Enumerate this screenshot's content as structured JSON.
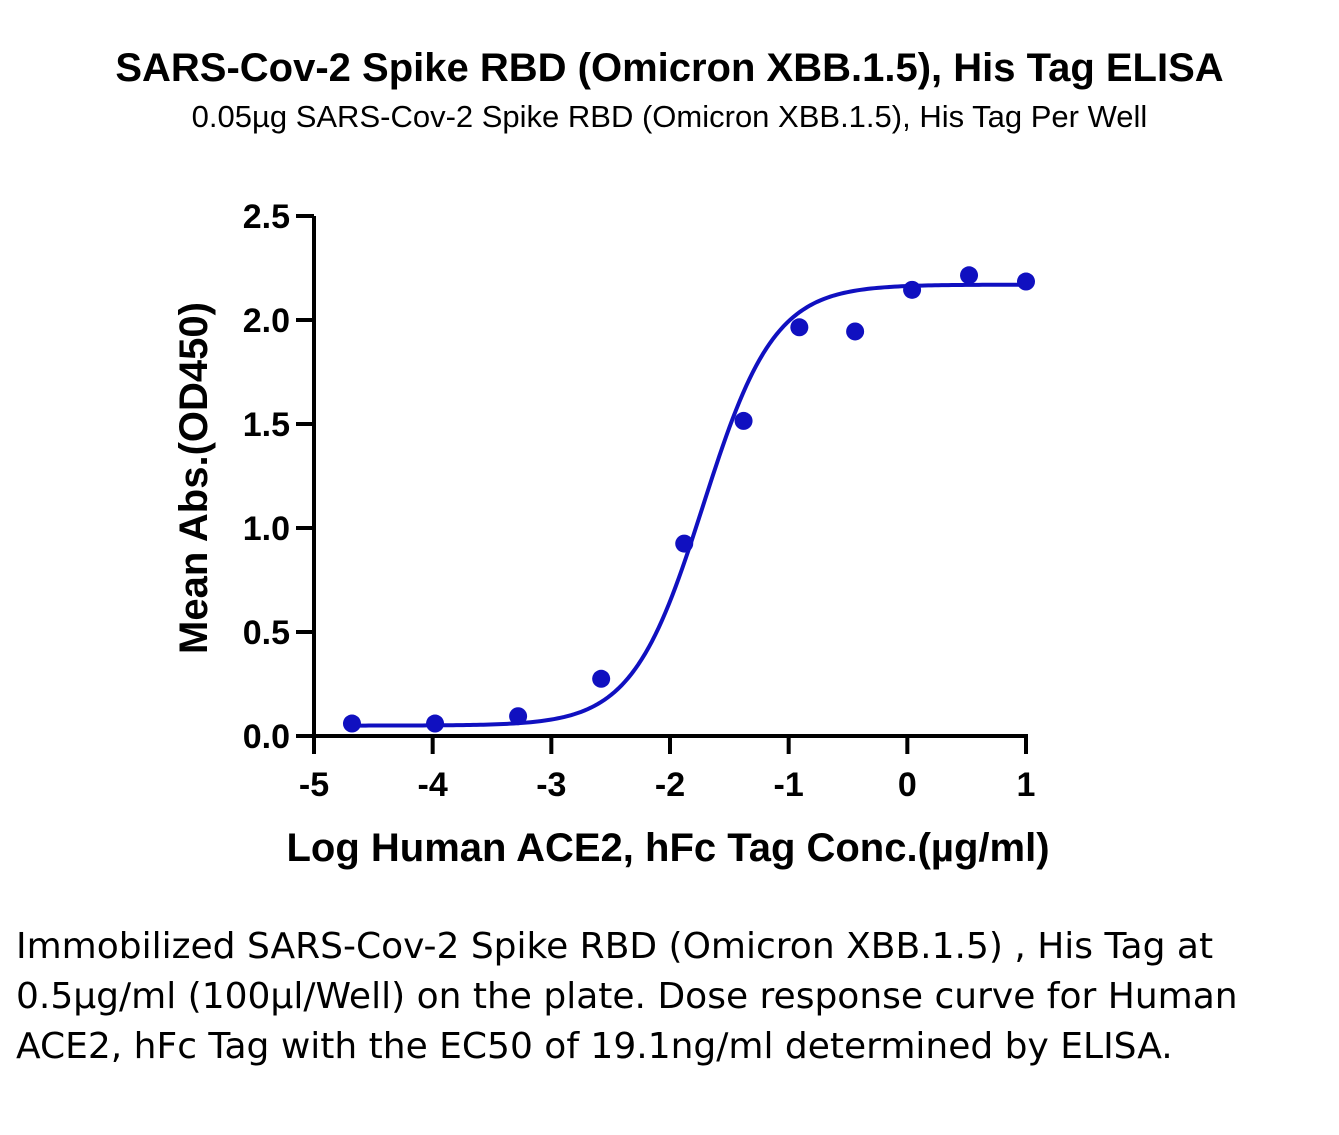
{
  "chart_data": {
    "type": "scatter",
    "title": "SARS-Cov-2 Spike RBD (Omicron XBB.1.5), His Tag ELISA",
    "subtitle": "0.05µg SARS-Cov-2 Spike RBD (Omicron XBB.1.5), His Tag Per Well",
    "xlabel": "Log Human ACE2, hFc Tag Conc.(µg/ml)",
    "ylabel": "Mean Abs.(OD450)",
    "xlim": [
      -5,
      1
    ],
    "ylim": [
      0,
      2.5
    ],
    "x_ticks": [
      -5,
      -4,
      -3,
      -2,
      -1,
      0,
      1
    ],
    "x_tick_labels": [
      "-5",
      "-4",
      "-3",
      "-2",
      "-1",
      "0",
      "1"
    ],
    "y_ticks": [
      0,
      0.5,
      1.0,
      1.5,
      2.0,
      2.5
    ],
    "y_tick_labels": [
      "0.0",
      "0.5",
      "1.0",
      "1.5",
      "2.0",
      "2.5"
    ],
    "grid": false,
    "color": "#1010c0",
    "points": [
      {
        "x": -4.68,
        "y": 0.06
      },
      {
        "x": -3.98,
        "y": 0.06
      },
      {
        "x": -3.28,
        "y": 0.095
      },
      {
        "x": -2.58,
        "y": 0.275
      },
      {
        "x": -1.88,
        "y": 0.925
      },
      {
        "x": -1.38,
        "y": 1.515
      },
      {
        "x": -0.91,
        "y": 1.965
      },
      {
        "x": -0.44,
        "y": 1.945
      },
      {
        "x": 0.04,
        "y": 2.145
      },
      {
        "x": 0.52,
        "y": 2.215
      },
      {
        "x": 1.0,
        "y": 2.185
      }
    ],
    "fit": {
      "model": "four-parameter logistic",
      "bottom": 0.05,
      "top": 2.17,
      "log_ec50": -1.72,
      "hill_slope": 1.45
    }
  },
  "caption": "Immobilized SARS-Cov-2 Spike RBD (Omicron XBB.1.5) , His Tag at 0.5µg/ml (100µl/Well) on the plate. Dose response curve for Human ACE2, hFc Tag with the EC50 of 19.1ng/ml determined by ELISA."
}
